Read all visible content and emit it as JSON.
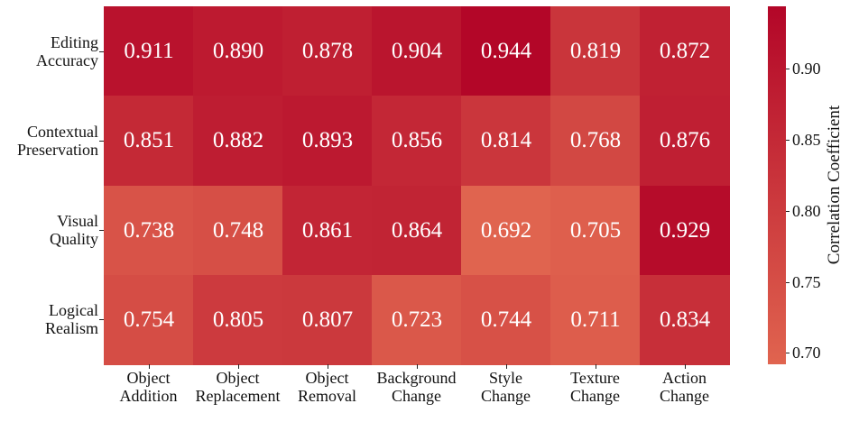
{
  "chart_data": {
    "type": "heatmap",
    "title": "",
    "xlabel": "",
    "ylabel": "",
    "x_categories": [
      "Object Addition",
      "Object Replacement",
      "Object Removal",
      "Background Change",
      "Style Change",
      "Texture Change",
      "Action Change"
    ],
    "x_tick_lines": [
      [
        "Object",
        "Addition"
      ],
      [
        "Object",
        "Replacement"
      ],
      [
        "Object",
        "Removal"
      ],
      [
        "Background",
        "Change"
      ],
      [
        "Style",
        "Change"
      ],
      [
        "Texture",
        "Change"
      ],
      [
        "Action",
        "Change"
      ]
    ],
    "y_categories": [
      "Editing Accuracy",
      "Contextual Preservation",
      "Visual Quality",
      "Logical Realism"
    ],
    "y_tick_lines": [
      [
        "Editing",
        "Accuracy"
      ],
      [
        "Contextual",
        "Preservation"
      ],
      [
        "Visual",
        "Quality"
      ],
      [
        "Logical",
        "Realism"
      ]
    ],
    "values": [
      [
        0.911,
        0.89,
        0.878,
        0.904,
        0.944,
        0.819,
        0.872
      ],
      [
        0.851,
        0.882,
        0.893,
        0.856,
        0.814,
        0.768,
        0.876
      ],
      [
        0.738,
        0.748,
        0.861,
        0.864,
        0.692,
        0.705,
        0.929
      ],
      [
        0.754,
        0.805,
        0.807,
        0.723,
        0.744,
        0.711,
        0.834
      ]
    ],
    "value_format": "0.000",
    "colorbar": {
      "label": "Correlation Coefficient",
      "ticks": [
        "0.70",
        "0.75",
        "0.80",
        "0.85",
        "0.90"
      ],
      "vmin": 0.692,
      "vmax": 0.944,
      "color_low": "#e0644f",
      "color_high": "#b30628"
    },
    "annotation_color": "#ffffff",
    "grid": false
  }
}
